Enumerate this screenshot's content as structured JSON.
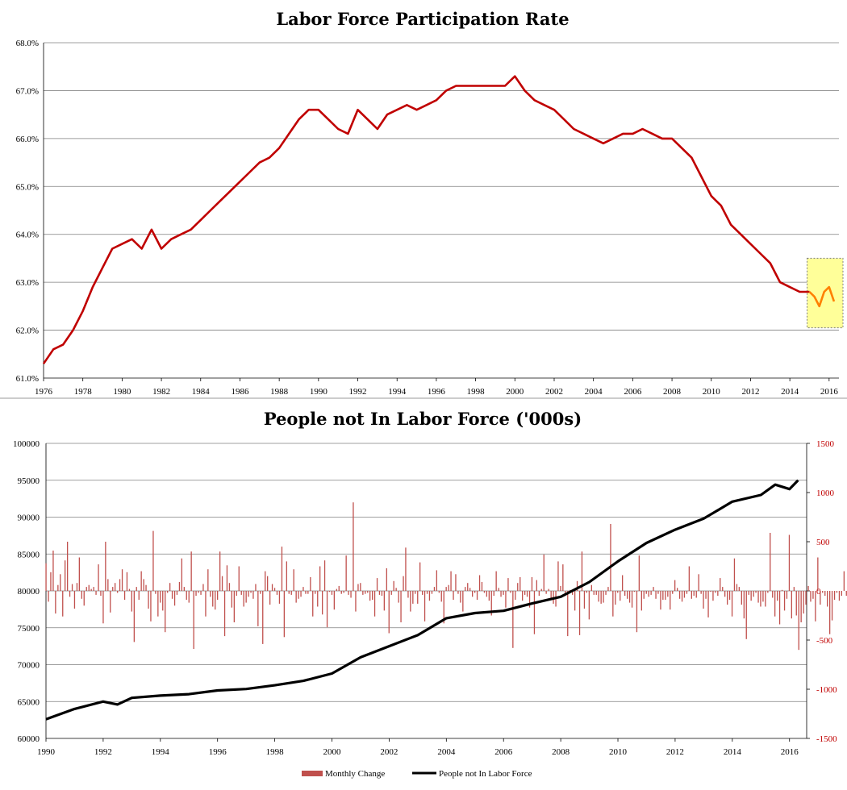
{
  "chart_data": [
    {
      "type": "line",
      "title": "Labor Force Participation Rate",
      "ylim": [
        61.0,
        68.0
      ],
      "y_ticks": [
        "68.0%",
        "67.0%",
        "66.0%",
        "65.0%",
        "64.0%",
        "63.0%",
        "62.0%",
        "61.0%"
      ],
      "x_ticks": [
        "1976",
        "1978",
        "1980",
        "1982",
        "1984",
        "1986",
        "1988",
        "1990",
        "1992",
        "1994",
        "1996",
        "1998",
        "2000",
        "2002",
        "2004",
        "2006",
        "2008",
        "2010",
        "2012",
        "2014",
        "2016"
      ],
      "xlim": [
        1976,
        2016.5
      ],
      "grid": true,
      "line_color": "#c00000",
      "highlight_color": "#ff8000",
      "highlight_box_color": "#ffff99",
      "highlight_range": [
        2015.0,
        2016.5
      ],
      "series": [
        {
          "x": [
            1976.0,
            1976.5,
            1977.0,
            1977.5,
            1978.0,
            1978.5,
            1979.0,
            1979.5,
            1980.0,
            1980.5,
            1981.0,
            1981.5,
            1982.0,
            1982.5,
            1983.0,
            1983.5,
            1984.0,
            1984.5,
            1985.0,
            1985.5,
            1986.0,
            1986.5,
            1987.0,
            1987.5,
            1988.0,
            1988.5,
            1989.0,
            1989.5,
            1990.0,
            1990.5,
            1991.0,
            1991.5,
            1992.0,
            1992.5,
            1993.0,
            1993.5,
            1994.0,
            1994.5,
            1995.0,
            1995.5,
            1996.0,
            1996.5,
            1997.0,
            1997.5,
            1998.0,
            1998.5,
            1999.0,
            1999.5,
            2000.0,
            2000.5,
            2001.0,
            2001.5,
            2002.0,
            2002.5,
            2003.0,
            2003.5,
            2004.0,
            2004.5,
            2005.0,
            2005.5,
            2006.0,
            2006.5,
            2007.0,
            2007.5,
            2008.0,
            2008.5,
            2009.0,
            2009.5,
            2010.0,
            2010.5,
            2011.0,
            2011.5,
            2012.0,
            2012.5,
            2013.0,
            2013.5,
            2014.0,
            2014.5,
            2015.0,
            2015.25,
            2015.5,
            2015.75,
            2016.0,
            2016.25
          ],
          "values": [
            61.3,
            61.6,
            61.7,
            62.0,
            62.4,
            62.9,
            63.3,
            63.7,
            63.8,
            63.9,
            63.7,
            64.1,
            63.7,
            63.9,
            64.0,
            64.1,
            64.3,
            64.5,
            64.7,
            64.9,
            65.1,
            65.3,
            65.5,
            65.6,
            65.8,
            66.1,
            66.4,
            66.6,
            66.6,
            66.4,
            66.2,
            66.1,
            66.6,
            66.4,
            66.2,
            66.5,
            66.6,
            66.7,
            66.6,
            66.7,
            66.8,
            67.0,
            67.1,
            67.1,
            67.1,
            67.1,
            67.1,
            67.1,
            67.3,
            67.0,
            66.8,
            66.7,
            66.6,
            66.4,
            66.2,
            66.1,
            66.0,
            65.9,
            66.0,
            66.1,
            66.1,
            66.2,
            66.1,
            66.0,
            66.0,
            65.8,
            65.6,
            65.2,
            64.8,
            64.6,
            64.2,
            64.0,
            63.8,
            63.6,
            63.4,
            63.0,
            62.9,
            62.8,
            62.8,
            62.7,
            62.5,
            62.8,
            62.9,
            62.6
          ]
        }
      ]
    },
    {
      "type": "bar+line",
      "title": "People not In Labor Force ('000s)",
      "ylim": [
        60000,
        100000
      ],
      "y2lim": [
        -1500,
        1500
      ],
      "y_ticks": [
        "100000",
        "95000",
        "90000",
        "85000",
        "80000",
        "75000",
        "70000",
        "65000",
        "60000"
      ],
      "y2_ticks": [
        "1500",
        "1000",
        "500",
        "0",
        "-500",
        "-1000",
        "-1500"
      ],
      "x_ticks": [
        "1990",
        "1992",
        "1994",
        "1996",
        "1998",
        "2000",
        "2002",
        "2004",
        "2006",
        "2008",
        "2010",
        "2012",
        "2014",
        "2016"
      ],
      "xlim": [
        1990,
        2016.6
      ],
      "grid": true,
      "legend": {
        "position": "bottom",
        "bar_label": "Monthly Change",
        "line_label": "People not In Labor Force"
      },
      "bar_color": "#c0504d",
      "line_color": "#000000",
      "series": [
        {
          "name": "People not In Labor Force",
          "axis": "left",
          "x": [
            1990.0,
            1991.0,
            1992.0,
            1992.5,
            1993.0,
            1994.0,
            1995.0,
            1996.0,
            1997.0,
            1998.0,
            1999.0,
            2000.0,
            2001.0,
            2002.0,
            2003.0,
            2004.0,
            2005.0,
            2006.0,
            2007.0,
            2008.0,
            2009.0,
            2010.0,
            2011.0,
            2012.0,
            2013.0,
            2014.0,
            2015.0,
            2015.5,
            2016.0,
            2016.3
          ],
          "values": [
            62600,
            64000,
            65000,
            64600,
            65500,
            65800,
            66000,
            66500,
            66700,
            67200,
            67800,
            68800,
            71000,
            72500,
            74000,
            76300,
            77000,
            77300,
            78300,
            79200,
            81200,
            84000,
            86500,
            88300,
            89800,
            92100,
            93000,
            94400,
            93800,
            95000
          ]
        },
        {
          "name": "Monthly Change",
          "axis": "right",
          "start": 1990.0,
          "step": 0.0833,
          "values": [
            280,
            -110,
            190,
            410,
            -230,
            60,
            170,
            -260,
            310,
            500,
            -60,
            70,
            -180,
            80,
            340,
            -80,
            -150,
            40,
            60,
            20,
            40,
            -40,
            270,
            -50,
            -330,
            500,
            120,
            -220,
            40,
            80,
            -20,
            120,
            220,
            -90,
            190,
            20,
            -210,
            -520,
            40,
            -90,
            200,
            120,
            60,
            -180,
            -310,
            610,
            -30,
            -260,
            -120,
            -200,
            -420,
            -20,
            80,
            -80,
            -150,
            -40,
            90,
            330,
            40,
            -90,
            -120,
            400,
            -590,
            -50,
            -20,
            -40,
            70,
            -260,
            220,
            -60,
            -160,
            -190,
            -90,
            400,
            150,
            -460,
            260,
            80,
            -170,
            -320,
            -50,
            250,
            -40,
            -160,
            -120,
            -60,
            -20,
            -80,
            70,
            -360,
            -30,
            -540,
            200,
            150,
            -140,
            70,
            30,
            -40,
            -130,
            450,
            -470,
            300,
            -30,
            -40,
            220,
            -120,
            -80,
            -60,
            40,
            -30,
            -30,
            140,
            -260,
            -30,
            -160,
            250,
            -240,
            310,
            -370,
            -10,
            -40,
            -190,
            20,
            50,
            -30,
            -20,
            360,
            -40,
            -70,
            900,
            -210,
            70,
            80,
            -40,
            -30,
            -20,
            -100,
            -90,
            -260,
            130,
            -40,
            -50,
            -200,
            230,
            -430,
            -40,
            100,
            30,
            -120,
            -320,
            150,
            440,
            -70,
            -210,
            -130,
            -30,
            -130,
            290,
            -40,
            -310,
            -30,
            -100,
            -30,
            40,
            210,
            -20,
            -110,
            -330,
            40,
            60,
            200,
            -90,
            170,
            -30,
            -120,
            -210,
            40,
            80,
            30,
            -60,
            -20,
            -90,
            160,
            90,
            -20,
            -60,
            -100,
            -250,
            -50,
            200,
            30,
            -60,
            -40,
            -170,
            130,
            -20,
            -580,
            -90,
            80,
            140,
            -100,
            -40,
            -60,
            -170,
            140,
            -440,
            110,
            -50,
            20,
            370,
            -30,
            20,
            -70,
            -130,
            -160,
            300,
            50,
            270,
            -30,
            -460,
            10,
            -40,
            -200,
            100,
            -450,
            400,
            -180,
            -20,
            -290,
            60,
            -40,
            -40,
            -110,
            -130,
            -120,
            -40,
            40,
            680,
            -260,
            -140,
            -20,
            -100,
            160,
            -50,
            -80,
            -120,
            -170,
            -10,
            -420,
            360,
            -200,
            -80,
            -30,
            -60,
            -40,
            40,
            -80,
            -30,
            -190,
            -90,
            -90,
            -60,
            -190,
            -30,
            110,
            30,
            -80,
            -110,
            -70,
            -30,
            250,
            -80,
            -50,
            -70,
            170,
            -30,
            -180,
            -80,
            -270,
            -10,
            -100,
            -20,
            -50,
            130,
            40,
            -60,
            -140,
            -90,
            -260,
            330,
            70,
            40,
            -140,
            -280,
            -490,
            -40,
            -100,
            -60,
            -20,
            -120,
            -160,
            -110,
            -160,
            -20,
            590,
            -70,
            -260,
            -100,
            -340,
            10,
            -200,
            -80,
            570,
            -280,
            40,
            -250,
            -600,
            -320,
            -230,
            -140,
            50,
            -110,
            -80,
            -310,
            340,
            -140,
            -20,
            -50,
            -160,
            -440,
            -300,
            -90,
            -20,
            -100,
            -50,
            200,
            -50,
            -110,
            30,
            -30,
            -160,
            230,
            -40,
            -220,
            -40,
            -70,
            -330,
            -160,
            -70,
            -110,
            -60,
            -580,
            -180,
            -200,
            -20,
            -250,
            -20,
            -30,
            -80,
            -250,
            -70,
            80,
            -30,
            20,
            -120,
            -100,
            -70,
            100,
            -50,
            -190,
            -20
          ]
        }
      ]
    }
  ]
}
